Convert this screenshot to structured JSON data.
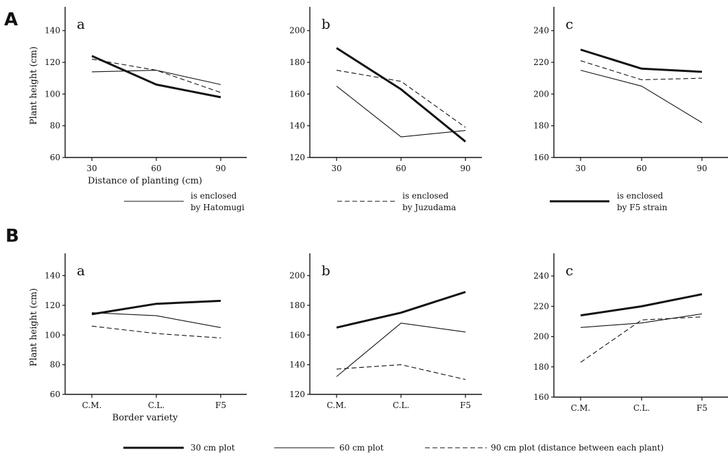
{
  "panel_labels": {
    "A": "A",
    "B": "B"
  },
  "legend_A": [
    {
      "style": "thin",
      "line1": "is enclosed",
      "line2": "by Hatomugi"
    },
    {
      "style": "dashed",
      "line1": "is enclosed",
      "line2": "by Juzudama"
    },
    {
      "style": "thick",
      "line1": "is enclosed",
      "line2": "by F5 strain"
    }
  ],
  "legend_B": [
    {
      "style": "thick",
      "label": "30 cm plot"
    },
    {
      "style": "thin",
      "label": "60 cm plot"
    },
    {
      "style": "dashed",
      "label": "90 cm plot (distance between each plant)"
    }
  ],
  "chart_data": [
    {
      "panel": "A",
      "label": "a",
      "type": "line",
      "x": [
        "30",
        "60",
        "90"
      ],
      "ylabel": "Plant height (cm)",
      "xlabel": "Distance of planting (cm)",
      "ylim": [
        60,
        155
      ],
      "yticks": [
        60,
        80,
        100,
        120,
        140
      ],
      "series": [
        {
          "style": "thin",
          "values": [
            114,
            115,
            106
          ]
        },
        {
          "style": "dashed",
          "values": [
            122,
            115,
            101
          ]
        },
        {
          "style": "thick",
          "values": [
            124,
            106,
            98
          ]
        }
      ]
    },
    {
      "panel": "A",
      "label": "b",
      "type": "line",
      "x": [
        "30",
        "60",
        "90"
      ],
      "ylabel": "",
      "xlabel": "",
      "ylim": [
        120,
        215
      ],
      "yticks": [
        120,
        140,
        160,
        180,
        200
      ],
      "series": [
        {
          "style": "thin",
          "values": [
            165,
            133,
            137
          ]
        },
        {
          "style": "dashed",
          "values": [
            175,
            168,
            139
          ]
        },
        {
          "style": "thick",
          "values": [
            189,
            163,
            130
          ]
        }
      ]
    },
    {
      "panel": "A",
      "label": "c",
      "type": "line",
      "x": [
        "30",
        "60",
        "90"
      ],
      "ylabel": "",
      "xlabel": "",
      "ylim": [
        160,
        255
      ],
      "yticks": [
        160,
        180,
        200,
        220,
        240
      ],
      "series": [
        {
          "style": "thin",
          "values": [
            215,
            205,
            182
          ]
        },
        {
          "style": "dashed",
          "values": [
            221,
            209,
            210
          ]
        },
        {
          "style": "thick",
          "values": [
            228,
            216,
            214
          ]
        }
      ]
    },
    {
      "panel": "B",
      "label": "a",
      "type": "line",
      "x": [
        "C.M.",
        "C.L.",
        "F5"
      ],
      "ylabel": "Plant height (cm)",
      "xlabel": "Border variety",
      "ylim": [
        60,
        155
      ],
      "yticks": [
        60,
        80,
        100,
        120,
        140
      ],
      "series": [
        {
          "style": "thick",
          "values": [
            114,
            121,
            123
          ]
        },
        {
          "style": "thin",
          "values": [
            115,
            113,
            105
          ]
        },
        {
          "style": "dashed",
          "values": [
            106,
            101,
            98
          ]
        }
      ]
    },
    {
      "panel": "B",
      "label": "b",
      "type": "line",
      "x": [
        "C.M.",
        "C.L.",
        "F5"
      ],
      "ylabel": "",
      "xlabel": "",
      "ylim": [
        120,
        215
      ],
      "yticks": [
        120,
        140,
        160,
        180,
        200
      ],
      "series": [
        {
          "style": "thick",
          "values": [
            165,
            175,
            189
          ]
        },
        {
          "style": "thin",
          "values": [
            132,
            168,
            162
          ]
        },
        {
          "style": "dashed",
          "values": [
            137,
            140,
            130
          ]
        }
      ]
    },
    {
      "panel": "B",
      "label": "c",
      "type": "line",
      "x": [
        "C.M.",
        "C.L.",
        "F5"
      ],
      "ylabel": "",
      "xlabel": "",
      "ylim": [
        160,
        255
      ],
      "yticks": [
        160,
        180,
        200,
        220,
        240
      ],
      "series": [
        {
          "style": "thick",
          "values": [
            214,
            220,
            228
          ]
        },
        {
          "style": "thin",
          "values": [
            206,
            209,
            215
          ]
        },
        {
          "style": "dashed",
          "values": [
            183,
            211,
            213
          ]
        }
      ]
    }
  ]
}
